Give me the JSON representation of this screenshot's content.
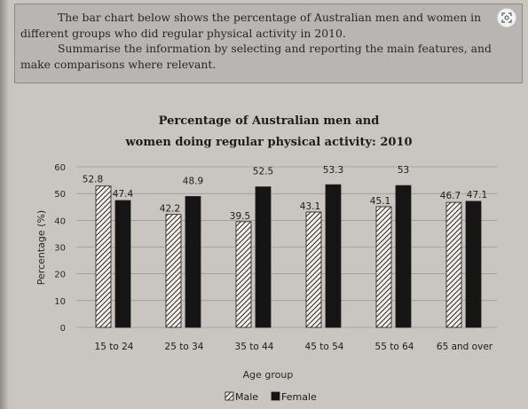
{
  "task": {
    "paragraph1": "The bar chart below shows the percentage of Australian men and women in different groups who did regular physical activity in 2010.",
    "paragraph2": "Summarise the information by selecting and reporting the main features, and make comparisons where relevant."
  },
  "chart_data": {
    "type": "bar",
    "title_line1": "Percentage of Australian men and",
    "title_line2": "women doing regular physical activity: 2010",
    "xlabel": "Age group",
    "ylabel": "Percentage (%)",
    "ylim": [
      0,
      60
    ],
    "yticks": [
      0,
      10,
      20,
      30,
      40,
      50,
      60
    ],
    "grid": true,
    "legend_position": "bottom",
    "categories": [
      "15 to 24",
      "25 to 34",
      "35 to 44",
      "45 to 54",
      "55 to 64",
      "65 and over"
    ],
    "series": [
      {
        "name": "Male",
        "values": [
          52.8,
          42.2,
          39.5,
          43.1,
          45.1,
          46.7
        ],
        "style": "hatched"
      },
      {
        "name": "Female",
        "values": [
          47.4,
          48.9,
          52.5,
          53.3,
          53,
          47.1
        ],
        "style": "solid",
        "color": "#151515"
      }
    ]
  }
}
